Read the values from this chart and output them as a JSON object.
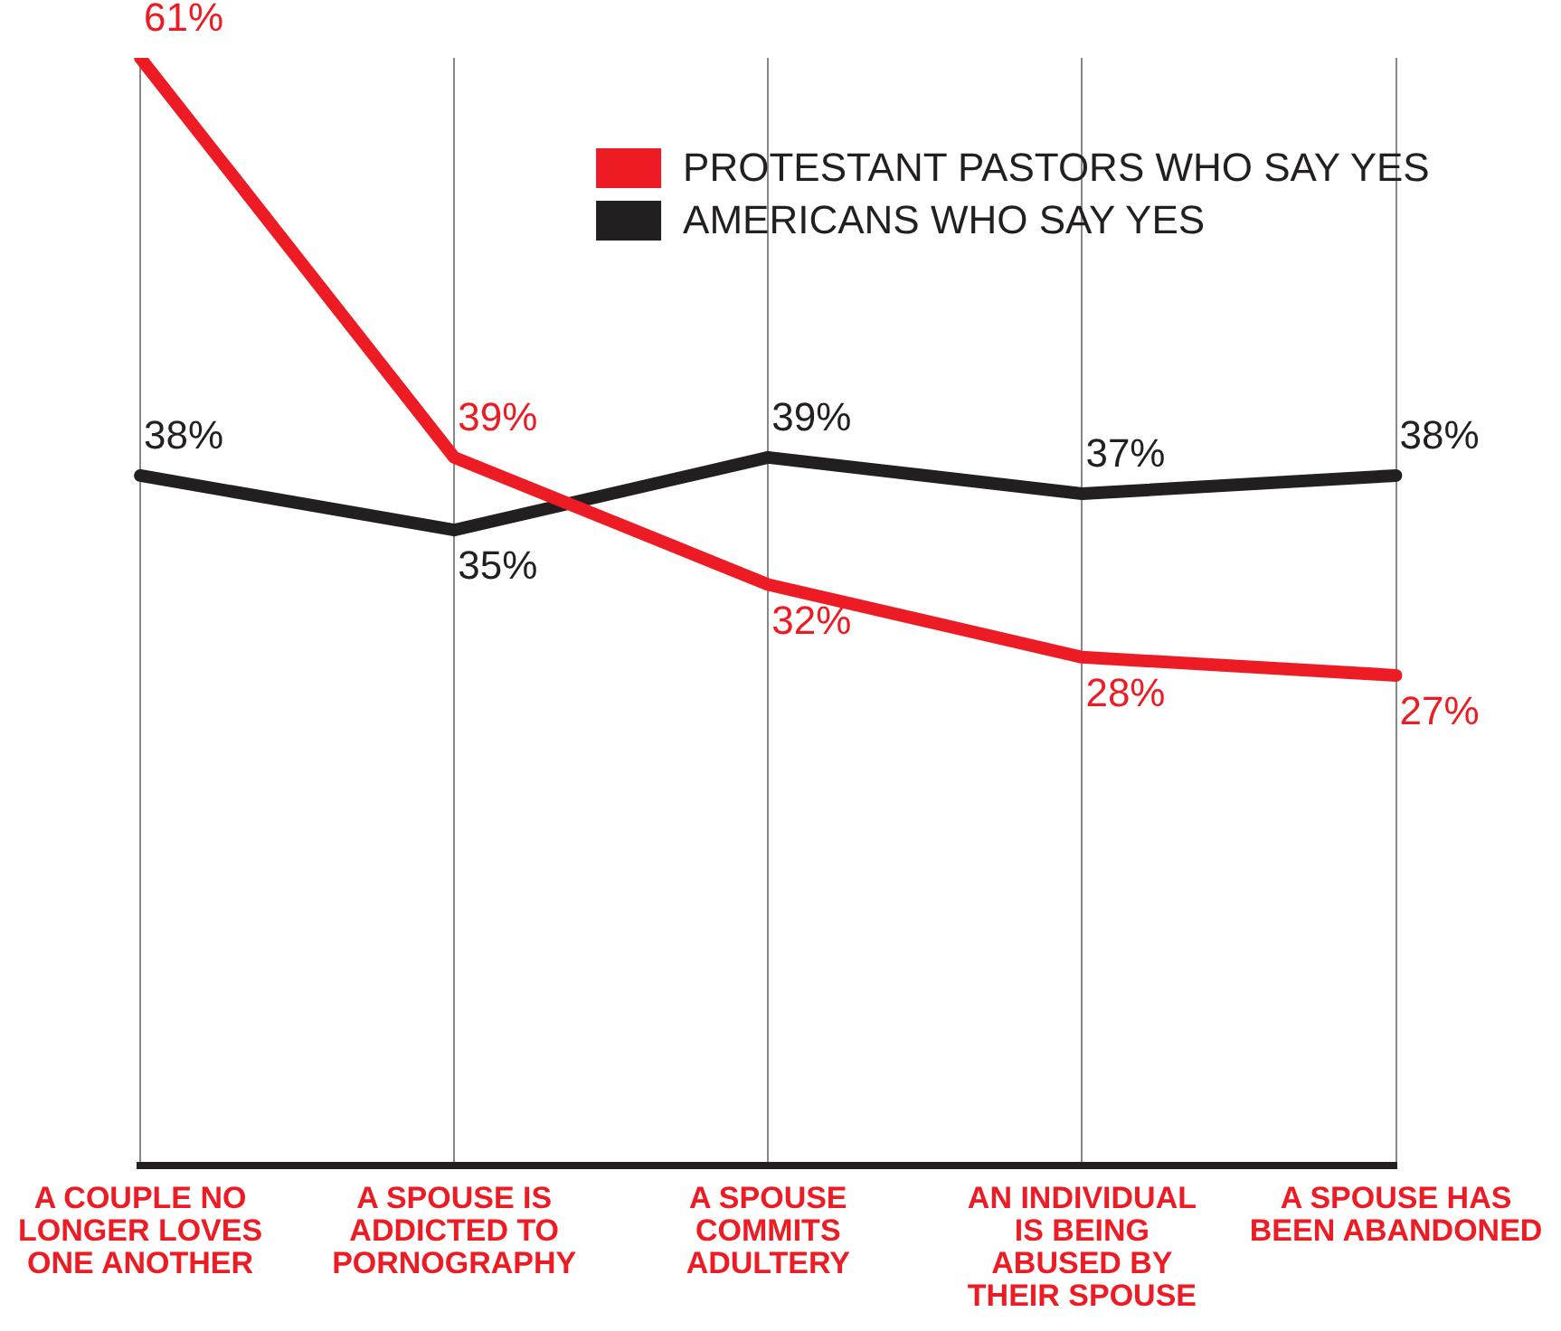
{
  "chart_data": {
    "type": "line",
    "categories": [
      "A COUPLE NO LONGER LOVES ONE ANOTHER",
      "A SPOUSE IS ADDICTED TO PORNOGRAPHY",
      "A SPOUSE COMMITS ADULTERY",
      "AN INDIVIDUAL IS BEING ABUSED BY THEIR SPOUSE",
      "A SPOUSE HAS BEEN ABANDONED"
    ],
    "series": [
      {
        "name": "PROTESTANT PASTORS WHO SAY YES",
        "color": "#ed1c24",
        "values": [
          61,
          39,
          32,
          28,
          27
        ],
        "value_labels": [
          "61%",
          "39%",
          "32%",
          "28%",
          "27%"
        ]
      },
      {
        "name": "AMERICANS WHO SAY YES",
        "color": "#231f20",
        "values": [
          38,
          35,
          39,
          37,
          38
        ],
        "value_labels": [
          "38%",
          "35%",
          "39%",
          "37%",
          "38%"
        ]
      }
    ],
    "grid": "x",
    "legend": "top",
    "marker": "none",
    "line_style": "solid"
  }
}
